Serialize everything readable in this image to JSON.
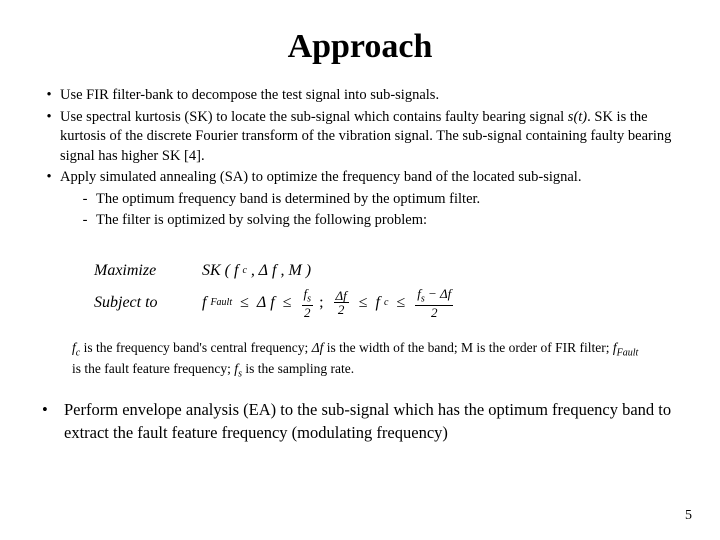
{
  "title": "Approach",
  "bullets": [
    {
      "level": 1,
      "text": "Use FIR filter-bank to decompose the test signal into sub-signals."
    },
    {
      "level": 1,
      "text": "Use spectral kurtosis (SK) to locate the sub-signal which contains faulty bearing signal s(t). SK is the kurtosis of the discrete Fourier transform of the vibration signal. The sub-signal containing faulty bearing signal has higher SK [4]."
    },
    {
      "level": 1,
      "text": "Apply simulated annealing (SA) to optimize the frequency band of the located sub-signal."
    },
    {
      "level": 2,
      "text": "The optimum frequency band is determined by the optimum filter."
    },
    {
      "level": 2,
      "text": "The filter is optimized by solving the following problem:"
    }
  ],
  "formula": {
    "maximize_label": "Maximize",
    "maximize_expr": "SK ( f_c , Δf , M )",
    "subject_label": "Subject  to",
    "constraint": {
      "lhs": "f_Fault",
      "op1": "≤",
      "mid1": "Δf",
      "op2": "≤",
      "frac1_num": "f_s",
      "frac1_den": "2",
      "sep": ";",
      "frac2_num": "Δf",
      "frac2_den": "2",
      "op3": "≤",
      "mid2": "f_c",
      "op4": "≤",
      "frac3_num": "f_s − Δf",
      "frac3_den": "2"
    }
  },
  "note_parts": {
    "p1": "f_c",
    "t1": " is the frequency band's central frequency; ",
    "p2": "Δf",
    "t2": " is the width of the band; M is the order of FIR filter; ",
    "p3": "f_Fault",
    "t3": " is the fault feature frequency; ",
    "p4": "f_s",
    "t4": " is the sampling rate."
  },
  "bottom": "Perform envelope analysis (EA) to the sub-signal which has the optimum frequency band to extract the fault feature frequency (modulating frequency)",
  "page": "5"
}
